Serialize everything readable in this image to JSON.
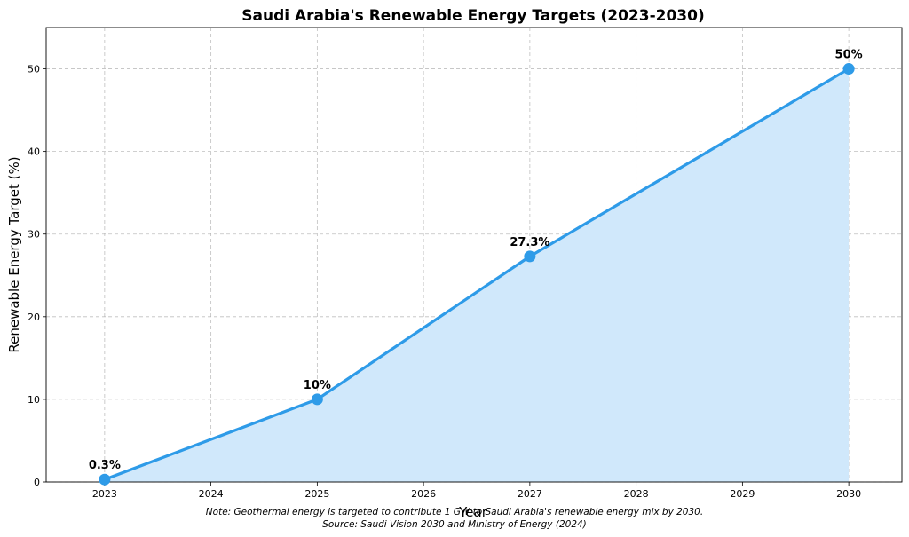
{
  "chart_data": {
    "type": "area",
    "title": "Saudi Arabia's Renewable Energy Targets (2023-2030)",
    "xlabel": "Year",
    "ylabel": "Renewable Energy Target (%)",
    "x_ticks": [
      "2023",
      "2024",
      "2025",
      "2026",
      "2027",
      "2028",
      "2029",
      "2030"
    ],
    "y_ticks": [
      "0",
      "10",
      "20",
      "30",
      "40",
      "50"
    ],
    "xlim": [
      2022.45,
      2030.5
    ],
    "ylim": [
      0,
      55
    ],
    "grid": true,
    "series": [
      {
        "name": "Renewable Energy Target",
        "x": [
          2023,
          2025,
          2027,
          2030
        ],
        "values": [
          0.3,
          10,
          27.3,
          50
        ],
        "labels": [
          "0.3%",
          "10%",
          "27.3%",
          "50%"
        ]
      }
    ],
    "colors": {
      "line": "#2e9be8",
      "fill": "#d0e8fb"
    },
    "notes": [
      "Note: Geothermal energy is targeted to contribute 1 GW to Saudi Arabia's renewable energy mix by 2030.",
      "Source: Saudi Vision 2030 and Ministry of Energy (2024)"
    ]
  }
}
